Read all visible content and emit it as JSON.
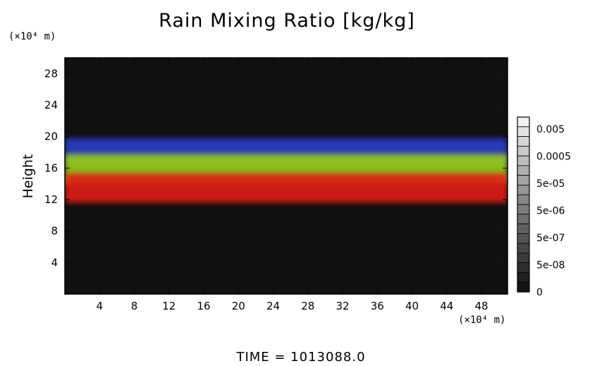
{
  "chart_data": {
    "type": "heatmap",
    "title": "Rain Mixing Ratio [kg/kg]",
    "ylabel": "Height",
    "xlabel": "",
    "x_unit": "(×10⁴ m)",
    "y_unit": "(×10⁴ m)",
    "xlim": [
      0,
      51
    ],
    "ylim": [
      0,
      30
    ],
    "x_ticks": [
      4,
      8,
      12,
      16,
      20,
      24,
      28,
      32,
      36,
      40,
      44,
      48
    ],
    "y_ticks": [
      4,
      8,
      12,
      16,
      20,
      24,
      28
    ],
    "colorbar": {
      "labels": [
        "0.005",
        "0.0005",
        "5e-05",
        "5e-06",
        "5e-07",
        "5e-08",
        "0"
      ]
    },
    "bands": [
      {
        "color": "#2a3fd6",
        "bottom": 16.6,
        "top": 19.8
      },
      {
        "color": "#9ccf1c",
        "bottom": 14.0,
        "top": 17.8
      },
      {
        "color": "#e21a14",
        "bottom": 11.6,
        "top": 15.3
      }
    ],
    "colors": {
      "background": "#111111",
      "blue": "#2a3fd6",
      "green": "#9ccf1c",
      "red": "#e21a14"
    }
  },
  "footer": {
    "time": "TIME = 1013088.0"
  }
}
